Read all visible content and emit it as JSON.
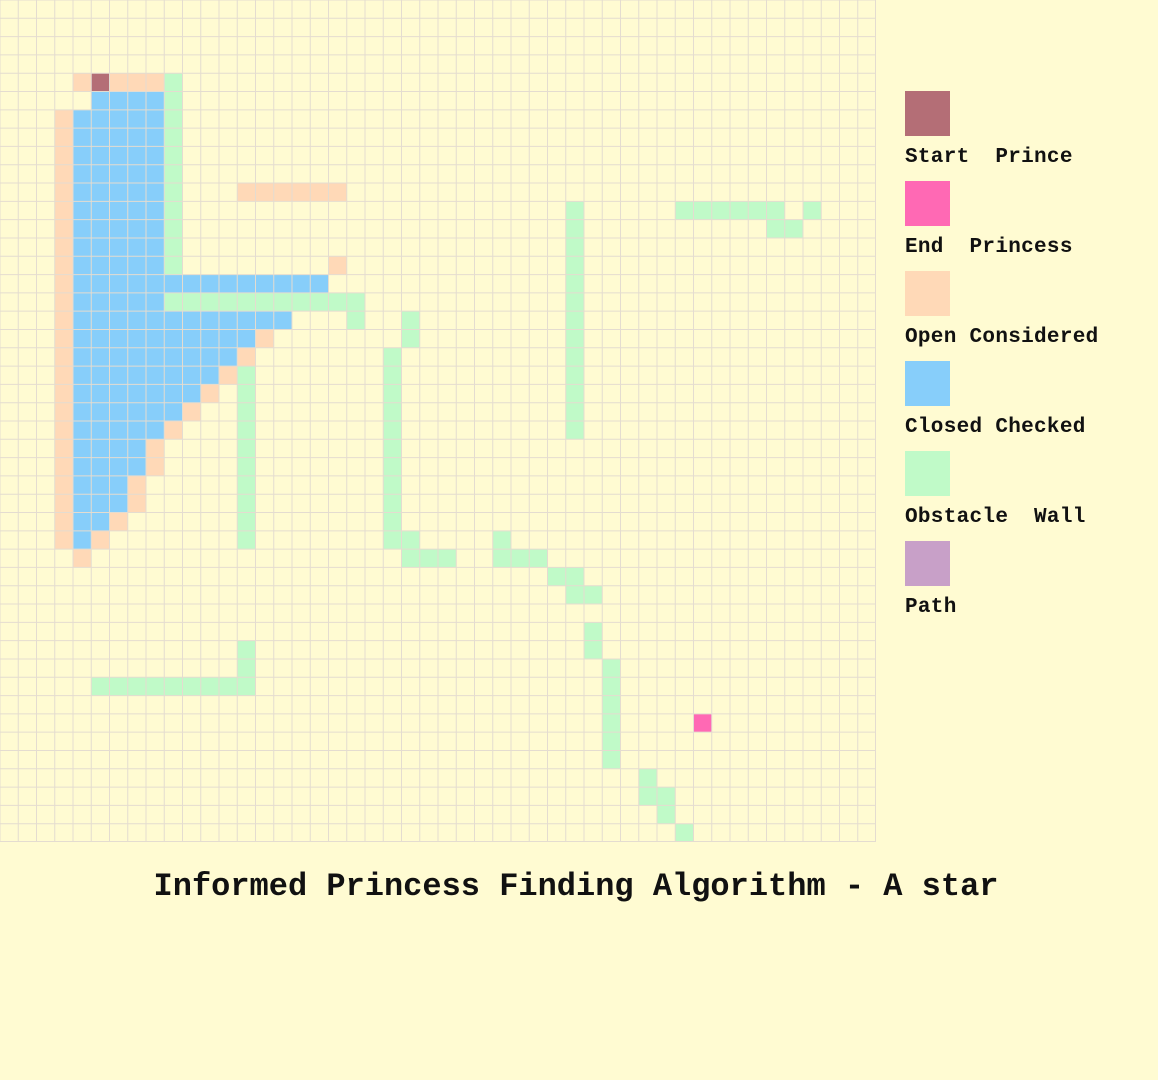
{
  "title": "Informed Princess Finding Algorithm - A star",
  "grid": {
    "cols": 48,
    "rows": 46
  },
  "colors": {
    "background": "#FFFBD2",
    "grid_line": "#E4DCD0",
    "start": "#B46E76",
    "end": "#FF69B4",
    "open": "#FFD9B7",
    "closed": "#87CEFA",
    "obstacle": "#C0FAC8",
    "path": "#C8A0C8"
  },
  "legend": [
    {
      "key": "start",
      "label": "Start  Prince"
    },
    {
      "key": "end",
      "label": "End  Princess"
    },
    {
      "key": "open",
      "label": "Open Considered"
    },
    {
      "key": "closed",
      "label": "Closed Checked"
    },
    {
      "key": "obstacle",
      "label": "Obstacle  Wall"
    },
    {
      "key": "path",
      "label": "Path"
    }
  ],
  "cells": {
    "start": [
      [
        4,
        5
      ]
    ],
    "end": [
      [
        39,
        38
      ]
    ],
    "path": [],
    "open_runs": [
      [
        4,
        4,
        8
      ],
      [
        6,
        3,
        3
      ],
      [
        7,
        3,
        3
      ],
      [
        8,
        3,
        3
      ],
      [
        9,
        3,
        3
      ],
      [
        10,
        3,
        3
      ],
      [
        11,
        3,
        3
      ],
      [
        12,
        3,
        3
      ],
      [
        13,
        3,
        3
      ],
      [
        14,
        3,
        3
      ],
      [
        15,
        3,
        3
      ],
      [
        16,
        3,
        3
      ],
      [
        17,
        3,
        3
      ],
      [
        18,
        3,
        3
      ],
      [
        19,
        3,
        3
      ],
      [
        20,
        3,
        3
      ],
      [
        21,
        3,
        3
      ],
      [
        22,
        3,
        3
      ],
      [
        23,
        3,
        3
      ],
      [
        24,
        3,
        3
      ],
      [
        25,
        3,
        3
      ],
      [
        26,
        3,
        3
      ],
      [
        27,
        3,
        3
      ],
      [
        28,
        3,
        3
      ],
      [
        29,
        3,
        3
      ],
      [
        30,
        4,
        4
      ],
      [
        10,
        13,
        18
      ],
      [
        14,
        18,
        18
      ],
      [
        15,
        17,
        17
      ],
      [
        16,
        16,
        16
      ],
      [
        17,
        15,
        15
      ],
      [
        18,
        14,
        14
      ],
      [
        19,
        13,
        13
      ],
      [
        20,
        12,
        12
      ],
      [
        21,
        11,
        11
      ],
      [
        22,
        10,
        10
      ],
      [
        23,
        9,
        9
      ],
      [
        24,
        8,
        8
      ],
      [
        25,
        8,
        8
      ],
      [
        26,
        7,
        7
      ],
      [
        27,
        7,
        7
      ],
      [
        28,
        6,
        6
      ],
      [
        29,
        5,
        5
      ]
    ],
    "closed_runs": [
      [
        5,
        5,
        8
      ],
      [
        6,
        4,
        8
      ],
      [
        7,
        4,
        8
      ],
      [
        8,
        4,
        8
      ],
      [
        9,
        4,
        8
      ],
      [
        10,
        4,
        8
      ],
      [
        11,
        4,
        8
      ],
      [
        12,
        4,
        8
      ],
      [
        13,
        4,
        8
      ],
      [
        14,
        4,
        8
      ],
      [
        15,
        4,
        17
      ],
      [
        16,
        4,
        8
      ],
      [
        17,
        4,
        15
      ],
      [
        18,
        4,
        13
      ],
      [
        19,
        4,
        12
      ],
      [
        20,
        4,
        11
      ],
      [
        21,
        4,
        10
      ],
      [
        22,
        4,
        9
      ],
      [
        23,
        4,
        8
      ],
      [
        24,
        4,
        7
      ],
      [
        25,
        4,
        7
      ],
      [
        26,
        4,
        6
      ],
      [
        27,
        4,
        6
      ],
      [
        28,
        4,
        5
      ],
      [
        29,
        4,
        4
      ]
    ],
    "obstacle_runs": [
      [
        4,
        9,
        9
      ],
      [
        5,
        9,
        9
      ],
      [
        6,
        9,
        9
      ],
      [
        7,
        9,
        9
      ],
      [
        8,
        9,
        9
      ],
      [
        9,
        9,
        9
      ],
      [
        10,
        9,
        9
      ],
      [
        11,
        9,
        9
      ],
      [
        12,
        9,
        9
      ],
      [
        13,
        9,
        9
      ],
      [
        14,
        9,
        9
      ],
      [
        16,
        9,
        19
      ],
      [
        17,
        19,
        19
      ],
      [
        11,
        31,
        31
      ],
      [
        12,
        31,
        31
      ],
      [
        13,
        31,
        31
      ],
      [
        14,
        31,
        31
      ],
      [
        15,
        31,
        31
      ],
      [
        16,
        31,
        31
      ],
      [
        17,
        31,
        31
      ],
      [
        18,
        31,
        31
      ],
      [
        19,
        31,
        31
      ],
      [
        20,
        31,
        31
      ],
      [
        21,
        31,
        31
      ],
      [
        22,
        31,
        31
      ],
      [
        23,
        31,
        31
      ],
      [
        11,
        37,
        42
      ],
      [
        11,
        44,
        44
      ],
      [
        12,
        42,
        43
      ],
      [
        17,
        22,
        22
      ],
      [
        18,
        22,
        22
      ],
      [
        19,
        21,
        21
      ],
      [
        20,
        21,
        21
      ],
      [
        21,
        21,
        21
      ],
      [
        22,
        21,
        21
      ],
      [
        23,
        21,
        21
      ],
      [
        24,
        21,
        21
      ],
      [
        25,
        21,
        21
      ],
      [
        26,
        21,
        21
      ],
      [
        27,
        21,
        21
      ],
      [
        28,
        21,
        21
      ],
      [
        29,
        21,
        22
      ],
      [
        20,
        13,
        13
      ],
      [
        21,
        13,
        13
      ],
      [
        22,
        13,
        13
      ],
      [
        23,
        13,
        13
      ],
      [
        24,
        13,
        13
      ],
      [
        25,
        13,
        13
      ],
      [
        26,
        13,
        13
      ],
      [
        27,
        13,
        13
      ],
      [
        28,
        13,
        13
      ],
      [
        29,
        13,
        13
      ],
      [
        29,
        27,
        27
      ],
      [
        30,
        22,
        24
      ],
      [
        30,
        27,
        29
      ],
      [
        31,
        30,
        31
      ],
      [
        32,
        31,
        32
      ],
      [
        34,
        32,
        32
      ],
      [
        35,
        32,
        32
      ],
      [
        36,
        33,
        33
      ],
      [
        37,
        33,
        33
      ],
      [
        38,
        33,
        33
      ],
      [
        39,
        33,
        33
      ],
      [
        40,
        33,
        33
      ],
      [
        41,
        33,
        33
      ],
      [
        42,
        35,
        35
      ],
      [
        43,
        35,
        36
      ],
      [
        44,
        36,
        36
      ],
      [
        45,
        37,
        37
      ],
      [
        35,
        13,
        13
      ],
      [
        36,
        13,
        13
      ],
      [
        37,
        5,
        13
      ]
    ]
  }
}
